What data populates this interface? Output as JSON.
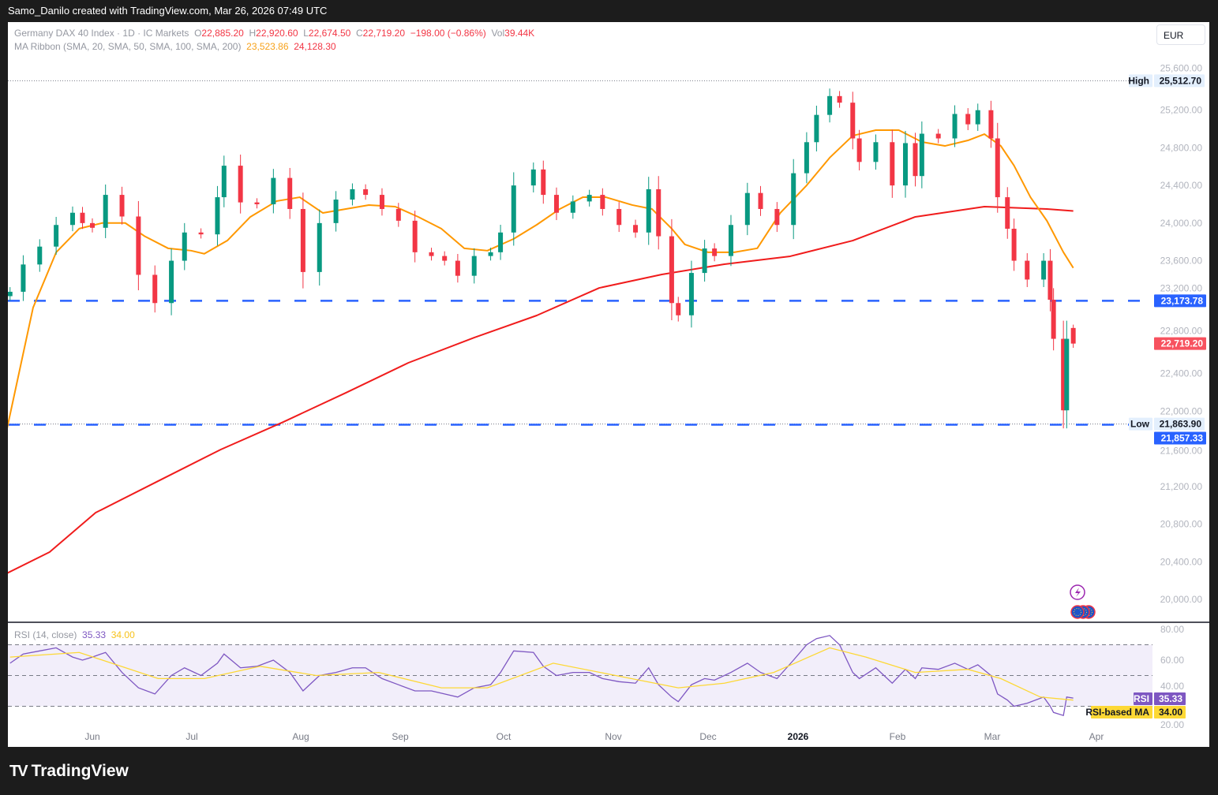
{
  "header": {
    "caption": "Samo_Danilo created with TradingView.com, Mar 26, 2026 07:49 UTC"
  },
  "legend": {
    "symbol": "Germany DAX 40 Index · 1D · IC Markets",
    "open_label": "O",
    "open": "22,885.20",
    "high_label": "H",
    "high": "22,920.60",
    "low_label": "L",
    "low": "22,674.50",
    "close_label": "C",
    "close": "22,719.20",
    "change": "−198.00 (−0.86%)",
    "vol_label": "Vol",
    "vol": "39.44K",
    "ma_title": "MA Ribbon (SMA, 20, SMA, 50, SMA, 100, SMA, 200)",
    "ma1_value": "23,523.86",
    "ma2_value": "24,128.30"
  },
  "currency_button": "EUR",
  "price_axis": {
    "ticks": [
      "25,600.00",
      "25,200.00",
      "24,800.00",
      "24,400.00",
      "24,000.00",
      "23,600.00",
      "23,200.00",
      "22,800.00",
      "22,400.00",
      "22,000.00",
      "21,600.00",
      "21,200.00",
      "20,800.00",
      "20,400.00",
      "20,000.00"
    ],
    "high_tag": "High",
    "high_value": "25,512.70",
    "low_tag": "Low",
    "low_value": "21,863.90",
    "level_upper": "23,173.78",
    "level_lower": "21,857.33",
    "last_price": "22,719.20"
  },
  "rsi": {
    "title": "RSI (14, close)",
    "value": "35.33",
    "ma_value": "34.00",
    "badge_label": "RSI",
    "ma_badge_label": "RSI-based MA",
    "ticks": [
      "80.00",
      "60.00",
      "40.00",
      "20.00"
    ]
  },
  "time_axis": [
    "Jun",
    "Jul",
    "Aug",
    "Sep",
    "Oct",
    "Nov",
    "Dec",
    "2026",
    "Feb",
    "Mar",
    "Apr"
  ],
  "footer": {
    "brand": "TradingView"
  },
  "colors": {
    "up": "#089981",
    "down": "#f23645",
    "sma20": "#ff9800",
    "sma200": "#f01c1c",
    "level": "#2962ff",
    "rsi": "#7e57c2",
    "rsi_ma": "#fdd835"
  },
  "icons": [
    "lightning-event-icon",
    "eu-flag-event-icon"
  ],
  "chart_data": {
    "type": "candlestick",
    "symbol": "Germany DAX 40 Index",
    "interval": "1D",
    "ylim": [
      19800,
      25700
    ],
    "grid": false,
    "last_candle": {
      "date": "2026-03-26",
      "open": 22885.2,
      "high": 22920.6,
      "low": 22674.5,
      "close": 22719.2
    },
    "closes": [
      [
        "2025-05-07",
        23270
      ],
      [
        "2025-05-11",
        23560
      ],
      [
        "2025-05-16",
        23750
      ],
      [
        "2025-05-21",
        23980
      ],
      [
        "2025-05-26",
        24110
      ],
      [
        "2025-05-29",
        24000
      ],
      [
        "2025-06-01",
        23950
      ],
      [
        "2025-06-05",
        24300
      ],
      [
        "2025-06-10",
        24070
      ],
      [
        "2025-06-15",
        23450
      ],
      [
        "2025-06-20",
        23150
      ],
      [
        "2025-06-25",
        23600
      ],
      [
        "2025-06-29",
        23900
      ],
      [
        "2025-07-04",
        23880
      ],
      [
        "2025-07-09",
        24275
      ],
      [
        "2025-07-11",
        24610
      ],
      [
        "2025-07-16",
        24220
      ],
      [
        "2025-07-21",
        24200
      ],
      [
        "2025-07-26",
        24480
      ],
      [
        "2025-07-31",
        24150
      ],
      [
        "2025-08-04",
        23480
      ],
      [
        "2025-08-09",
        24000
      ],
      [
        "2025-08-14",
        24250
      ],
      [
        "2025-08-19",
        24360
      ],
      [
        "2025-08-23",
        24300
      ],
      [
        "2025-08-28",
        24150
      ],
      [
        "2025-09-02",
        24025
      ],
      [
        "2025-09-07",
        23690
      ],
      [
        "2025-09-12",
        23650
      ],
      [
        "2025-09-16",
        23600
      ],
      [
        "2025-09-20",
        23440
      ],
      [
        "2025-09-25",
        23650
      ],
      [
        "2025-09-30",
        23690
      ],
      [
        "2025-10-03",
        23900
      ],
      [
        "2025-10-07",
        24400
      ],
      [
        "2025-10-13",
        24570
      ],
      [
        "2025-10-16",
        24300
      ],
      [
        "2025-10-20",
        24110
      ],
      [
        "2025-10-25",
        24230
      ],
      [
        "2025-10-30",
        24300
      ],
      [
        "2025-11-03",
        24150
      ],
      [
        "2025-11-08",
        23980
      ],
      [
        "2025-11-13",
        23900
      ],
      [
        "2025-11-17",
        24360
      ],
      [
        "2025-11-20",
        23860
      ],
      [
        "2025-11-24",
        23150
      ],
      [
        "2025-11-26",
        23020
      ],
      [
        "2025-11-30",
        23470
      ],
      [
        "2025-12-04",
        23730
      ],
      [
        "2025-12-07",
        23650
      ],
      [
        "2025-12-12",
        23980
      ],
      [
        "2025-12-17",
        24320
      ],
      [
        "2025-12-21",
        24150
      ],
      [
        "2025-12-26",
        23980
      ],
      [
        "2025-12-31",
        24530
      ],
      [
        "2026-01-04",
        24860
      ],
      [
        "2026-01-07",
        25150
      ],
      [
        "2026-01-11",
        25350
      ],
      [
        "2026-01-14",
        25280
      ],
      [
        "2026-01-18",
        24900
      ],
      [
        "2026-01-20",
        24650
      ],
      [
        "2026-01-25",
        24860
      ],
      [
        "2026-01-30",
        24400
      ],
      [
        "2026-02-03",
        24850
      ],
      [
        "2026-02-06",
        24500
      ],
      [
        "2026-02-08",
        24950
      ],
      [
        "2026-02-13",
        24900
      ],
      [
        "2026-02-18",
        25160
      ],
      [
        "2026-02-22",
        25050
      ],
      [
        "2026-02-25",
        25200
      ],
      [
        "2026-03-01",
        24900
      ],
      [
        "2026-03-03",
        24275
      ],
      [
        "2026-03-06",
        23940
      ],
      [
        "2026-03-08",
        23600
      ],
      [
        "2026-03-12",
        23400
      ],
      [
        "2026-03-17",
        23600
      ],
      [
        "2026-03-19",
        23185
      ],
      [
        "2026-03-20",
        22770
      ],
      [
        "2026-03-23",
        22010
      ],
      [
        "2026-03-24",
        22770
      ]
    ],
    "sma20": [
      [
        "2025-05-06",
        21803
      ],
      [
        "2025-05-14",
        23102
      ],
      [
        "2025-05-21",
        23689
      ],
      [
        "2025-05-28",
        23941
      ],
      [
        "2025-06-04",
        24001
      ],
      [
        "2025-06-11",
        24001
      ],
      [
        "2025-06-17",
        23858
      ],
      [
        "2025-06-24",
        23732
      ],
      [
        "2025-07-01",
        23707
      ],
      [
        "2025-07-05",
        23674
      ],
      [
        "2025-07-12",
        23814
      ],
      [
        "2025-07-19",
        24066
      ],
      [
        "2025-07-27",
        24234
      ],
      [
        "2025-08-03",
        24275
      ],
      [
        "2025-08-10",
        24108
      ],
      [
        "2025-08-17",
        24150
      ],
      [
        "2025-08-24",
        24192
      ],
      [
        "2025-09-01",
        24175
      ],
      [
        "2025-09-08",
        24066
      ],
      [
        "2025-09-15",
        23941
      ],
      [
        "2025-09-22",
        23732
      ],
      [
        "2025-09-29",
        23707
      ],
      [
        "2025-10-07",
        23832
      ],
      [
        "2025-10-14",
        23982
      ],
      [
        "2025-10-21",
        24150
      ],
      [
        "2025-10-28",
        24275
      ],
      [
        "2025-11-04",
        24275
      ],
      [
        "2025-11-12",
        24192
      ],
      [
        "2025-11-18",
        24150
      ],
      [
        "2025-11-24",
        23941
      ],
      [
        "2025-11-28",
        23773
      ],
      [
        "2025-12-05",
        23690
      ],
      [
        "2025-12-13",
        23690
      ],
      [
        "2025-12-20",
        23732
      ],
      [
        "2025-12-27",
        24108
      ],
      [
        "2026-01-04",
        24401
      ],
      [
        "2026-01-11",
        24695
      ],
      [
        "2026-01-18",
        24929
      ],
      [
        "2026-01-25",
        24988
      ],
      [
        "2026-02-01",
        24988
      ],
      [
        "2026-02-08",
        24862
      ],
      [
        "2026-02-15",
        24820
      ],
      [
        "2026-02-22",
        24879
      ],
      [
        "2026-02-27",
        24946
      ],
      [
        "2026-03-04",
        24820
      ],
      [
        "2026-03-08",
        24611
      ],
      [
        "2026-03-13",
        24275
      ],
      [
        "2026-03-18",
        24024
      ],
      [
        "2026-03-23",
        23690
      ],
      [
        "2026-03-26",
        23523.86
      ]
    ],
    "sma200": [
      [
        "2025-05-06",
        20277
      ],
      [
        "2025-05-19",
        20503
      ],
      [
        "2025-06-02",
        20922
      ],
      [
        "2025-06-21",
        21258
      ],
      [
        "2025-07-10",
        21593
      ],
      [
        "2025-07-29",
        21886
      ],
      [
        "2025-08-17",
        22196
      ],
      [
        "2025-09-05",
        22515
      ],
      [
        "2025-09-25",
        22783
      ],
      [
        "2025-10-14",
        23018
      ],
      [
        "2025-11-02",
        23311
      ],
      [
        "2025-11-21",
        23454
      ],
      [
        "2025-12-10",
        23563
      ],
      [
        "2025-12-30",
        23647
      ],
      [
        "2026-01-18",
        23814
      ],
      [
        "2026-02-06",
        24066
      ],
      [
        "2026-02-27",
        24175
      ],
      [
        "2026-03-18",
        24150
      ],
      [
        "2026-03-26",
        24128.3
      ]
    ],
    "rsi_series": [
      58,
      64,
      66,
      68,
      62,
      60,
      62,
      65,
      52,
      42,
      38,
      50,
      55,
      50,
      58,
      64,
      55,
      56,
      60,
      52,
      40,
      50,
      52,
      55,
      55,
      48,
      44,
      40,
      40,
      38,
      36,
      42,
      44,
      52,
      66,
      65,
      56,
      50,
      52,
      52,
      48,
      46,
      45,
      55,
      44,
      36,
      33,
      44,
      48,
      47,
      52,
      58,
      52,
      48,
      60,
      70,
      74,
      76,
      70,
      52,
      48,
      55,
      45,
      54,
      48,
      55,
      54,
      58,
      54,
      57,
      50,
      38,
      34,
      30,
      32,
      36,
      30,
      26,
      24,
      36,
      35.33
    ],
    "rsi_ma": [
      [
        "2025-05-07",
        62
      ],
      [
        "2025-05-28",
        65
      ],
      [
        "2025-06-21",
        48
      ],
      [
        "2025-07-05",
        48
      ],
      [
        "2025-07-22",
        56
      ],
      [
        "2025-08-08",
        50
      ],
      [
        "2025-08-27",
        52
      ],
      [
        "2025-09-15",
        42
      ],
      [
        "2025-09-29",
        42
      ],
      [
        "2025-10-19",
        58
      ],
      [
        "2025-11-07",
        50
      ],
      [
        "2025-11-26",
        42
      ],
      [
        "2025-12-10",
        45
      ],
      [
        "2025-12-25",
        52
      ],
      [
        "2026-01-11",
        68
      ],
      [
        "2026-01-22",
        62
      ],
      [
        "2026-02-06",
        52
      ],
      [
        "2026-02-22",
        54
      ],
      [
        "2026-03-04",
        48
      ],
      [
        "2026-03-16",
        36
      ],
      [
        "2026-03-26",
        34
      ]
    ],
    "rsi_levels": [
      70,
      50,
      30
    ],
    "rsi_ylim": [
      20,
      80
    ],
    "horizontal_levels": [
      23173.78,
      21857.33
    ],
    "high": 25512.7,
    "low": 21863.9
  }
}
